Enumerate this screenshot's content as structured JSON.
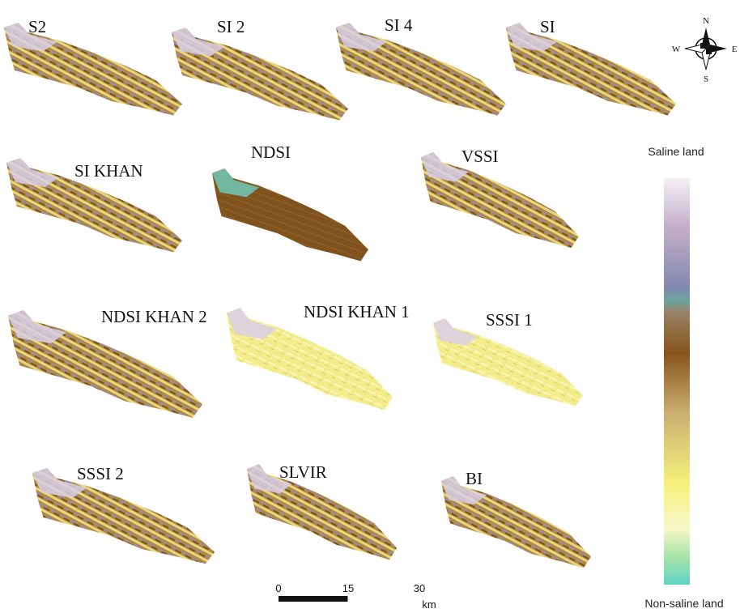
{
  "panels": [
    {
      "label": "S2"
    },
    {
      "label": "SI 2"
    },
    {
      "label": "SI 4"
    },
    {
      "label": "SI"
    },
    {
      "label": "SI KHAN"
    },
    {
      "label": "NDSI"
    },
    {
      "label": "VSSI"
    },
    {
      "label": "NDSI KHAN 2"
    },
    {
      "label": "NDSI KHAN 1"
    },
    {
      "label": "SSSI 1"
    },
    {
      "label": "SSSI 2"
    },
    {
      "label": "SLVIR"
    },
    {
      "label": "BI"
    }
  ],
  "compass": {
    "north": "N",
    "south": "S",
    "east": "E",
    "west": "W"
  },
  "legend": {
    "top": "Saline land",
    "bottom": "Non-saline land"
  },
  "scale_bar": {
    "ticks": [
      0,
      15,
      30
    ],
    "unit": "km"
  }
}
